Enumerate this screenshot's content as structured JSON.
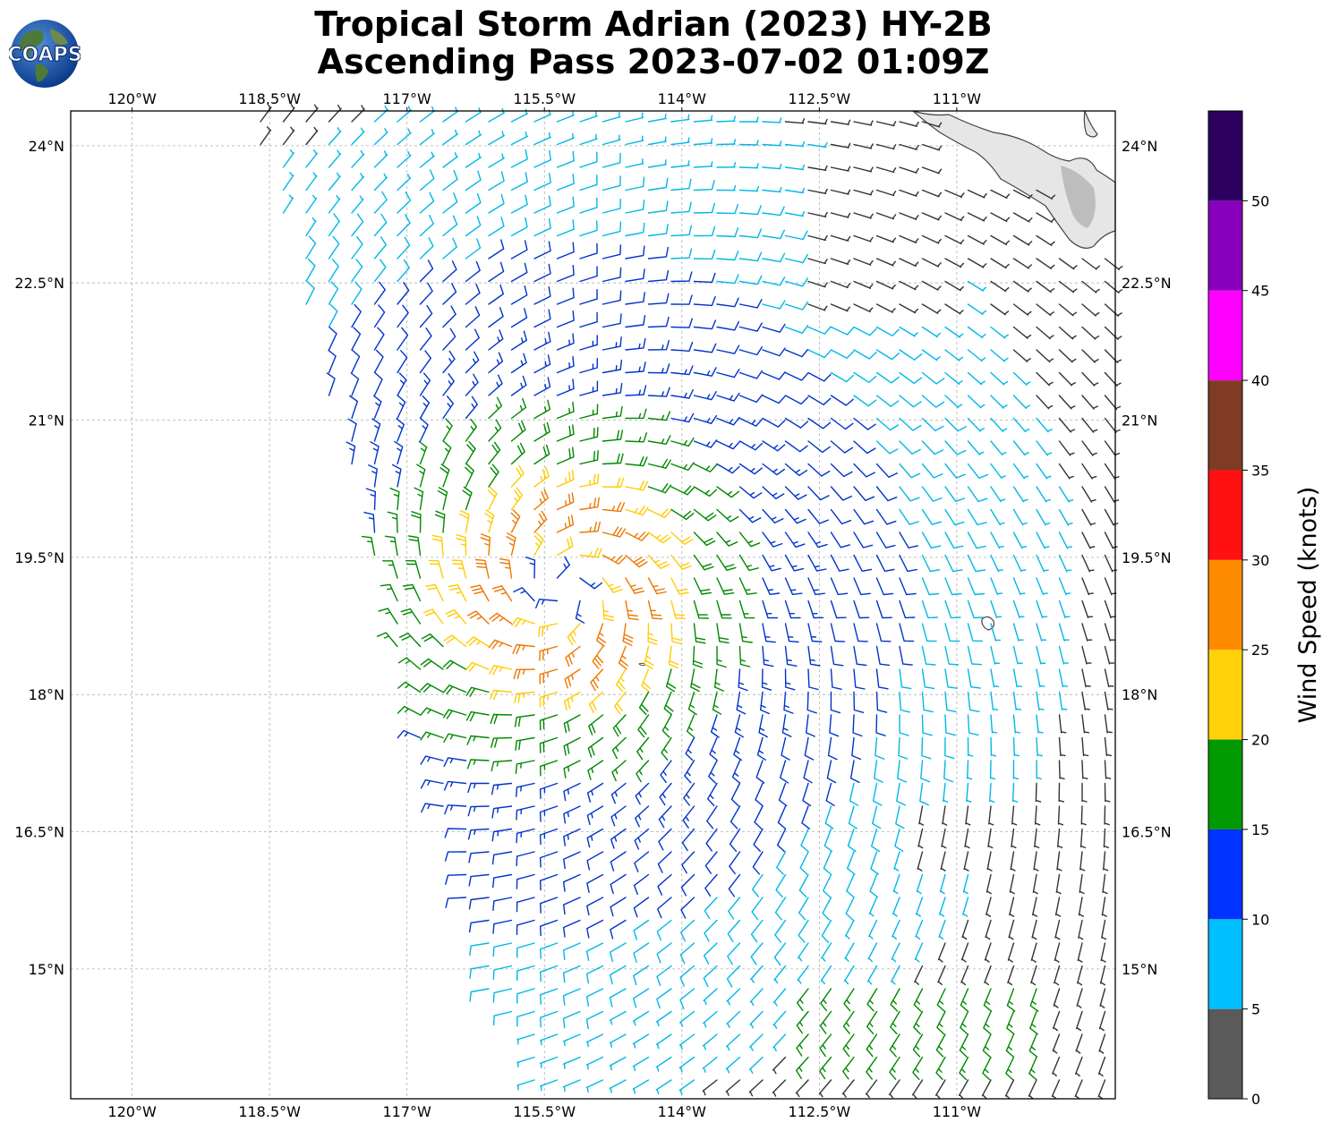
{
  "title": {
    "line1": "Tropical Storm Adrian (2023) HY-2B",
    "line2": "Ascending Pass 2023-07-02 01:09Z"
  },
  "logo": {
    "text": "COAPS",
    "icon": "globe-logo-icon"
  },
  "map": {
    "lon_range": [
      -120.67,
      -109.27
    ],
    "lat_range": [
      13.58,
      24.38
    ],
    "lon_ticks": [
      {
        "value": -120.0,
        "label": "120°W"
      },
      {
        "value": -118.5,
        "label": "118.5°W"
      },
      {
        "value": -117.0,
        "label": "117°W"
      },
      {
        "value": -115.5,
        "label": "115.5°W"
      },
      {
        "value": -114.0,
        "label": "114°W"
      },
      {
        "value": -112.5,
        "label": "112.5°W"
      },
      {
        "value": -111.0,
        "label": "111°W"
      }
    ],
    "lat_ticks": [
      {
        "value": 24.0,
        "label": "24°N"
      },
      {
        "value": 22.5,
        "label": "22.5°N"
      },
      {
        "value": 21.0,
        "label": "21°N"
      },
      {
        "value": 19.5,
        "label": "19.5°N"
      },
      {
        "value": 18.0,
        "label": "18°N"
      },
      {
        "value": 16.5,
        "label": "16.5°N"
      },
      {
        "value": 15.0,
        "label": "15°N"
      }
    ],
    "gridlines": true,
    "storm_center": {
      "lon": -115.3,
      "lat": 19.15
    },
    "land": "Baja California Sur (top-right)"
  },
  "colorbar": {
    "label": "Wind Speed (knots)",
    "ticks": [
      0,
      5,
      10,
      15,
      20,
      25,
      30,
      35,
      40,
      45,
      50
    ],
    "bins": [
      {
        "min": 0,
        "max": 5,
        "color": "#5a5a5a"
      },
      {
        "min": 5,
        "max": 10,
        "color": "#00bfff"
      },
      {
        "min": 10,
        "max": 15,
        "color": "#0033ff"
      },
      {
        "min": 15,
        "max": 20,
        "color": "#009900"
      },
      {
        "min": 20,
        "max": 25,
        "color": "#ffd20a"
      },
      {
        "min": 25,
        "max": 30,
        "color": "#ff8c00"
      },
      {
        "min": 30,
        "max": 35,
        "color": "#ff1111"
      },
      {
        "min": 35,
        "max": 40,
        "color": "#7f3b26"
      },
      {
        "min": 40,
        "max": 45,
        "color": "#ff00ff"
      },
      {
        "min": 45,
        "max": 50,
        "color": "#8800bb"
      },
      {
        "min": 50,
        "max": 55,
        "color": "#2d0060"
      }
    ]
  },
  "barb_colors": {
    "calm": "#333333",
    "5-10": "#00b8e8",
    "10-15": "#0033cc",
    "15-20": "#008800",
    "20-25": "#ffcc00",
    "25-30": "#ee7700"
  }
}
